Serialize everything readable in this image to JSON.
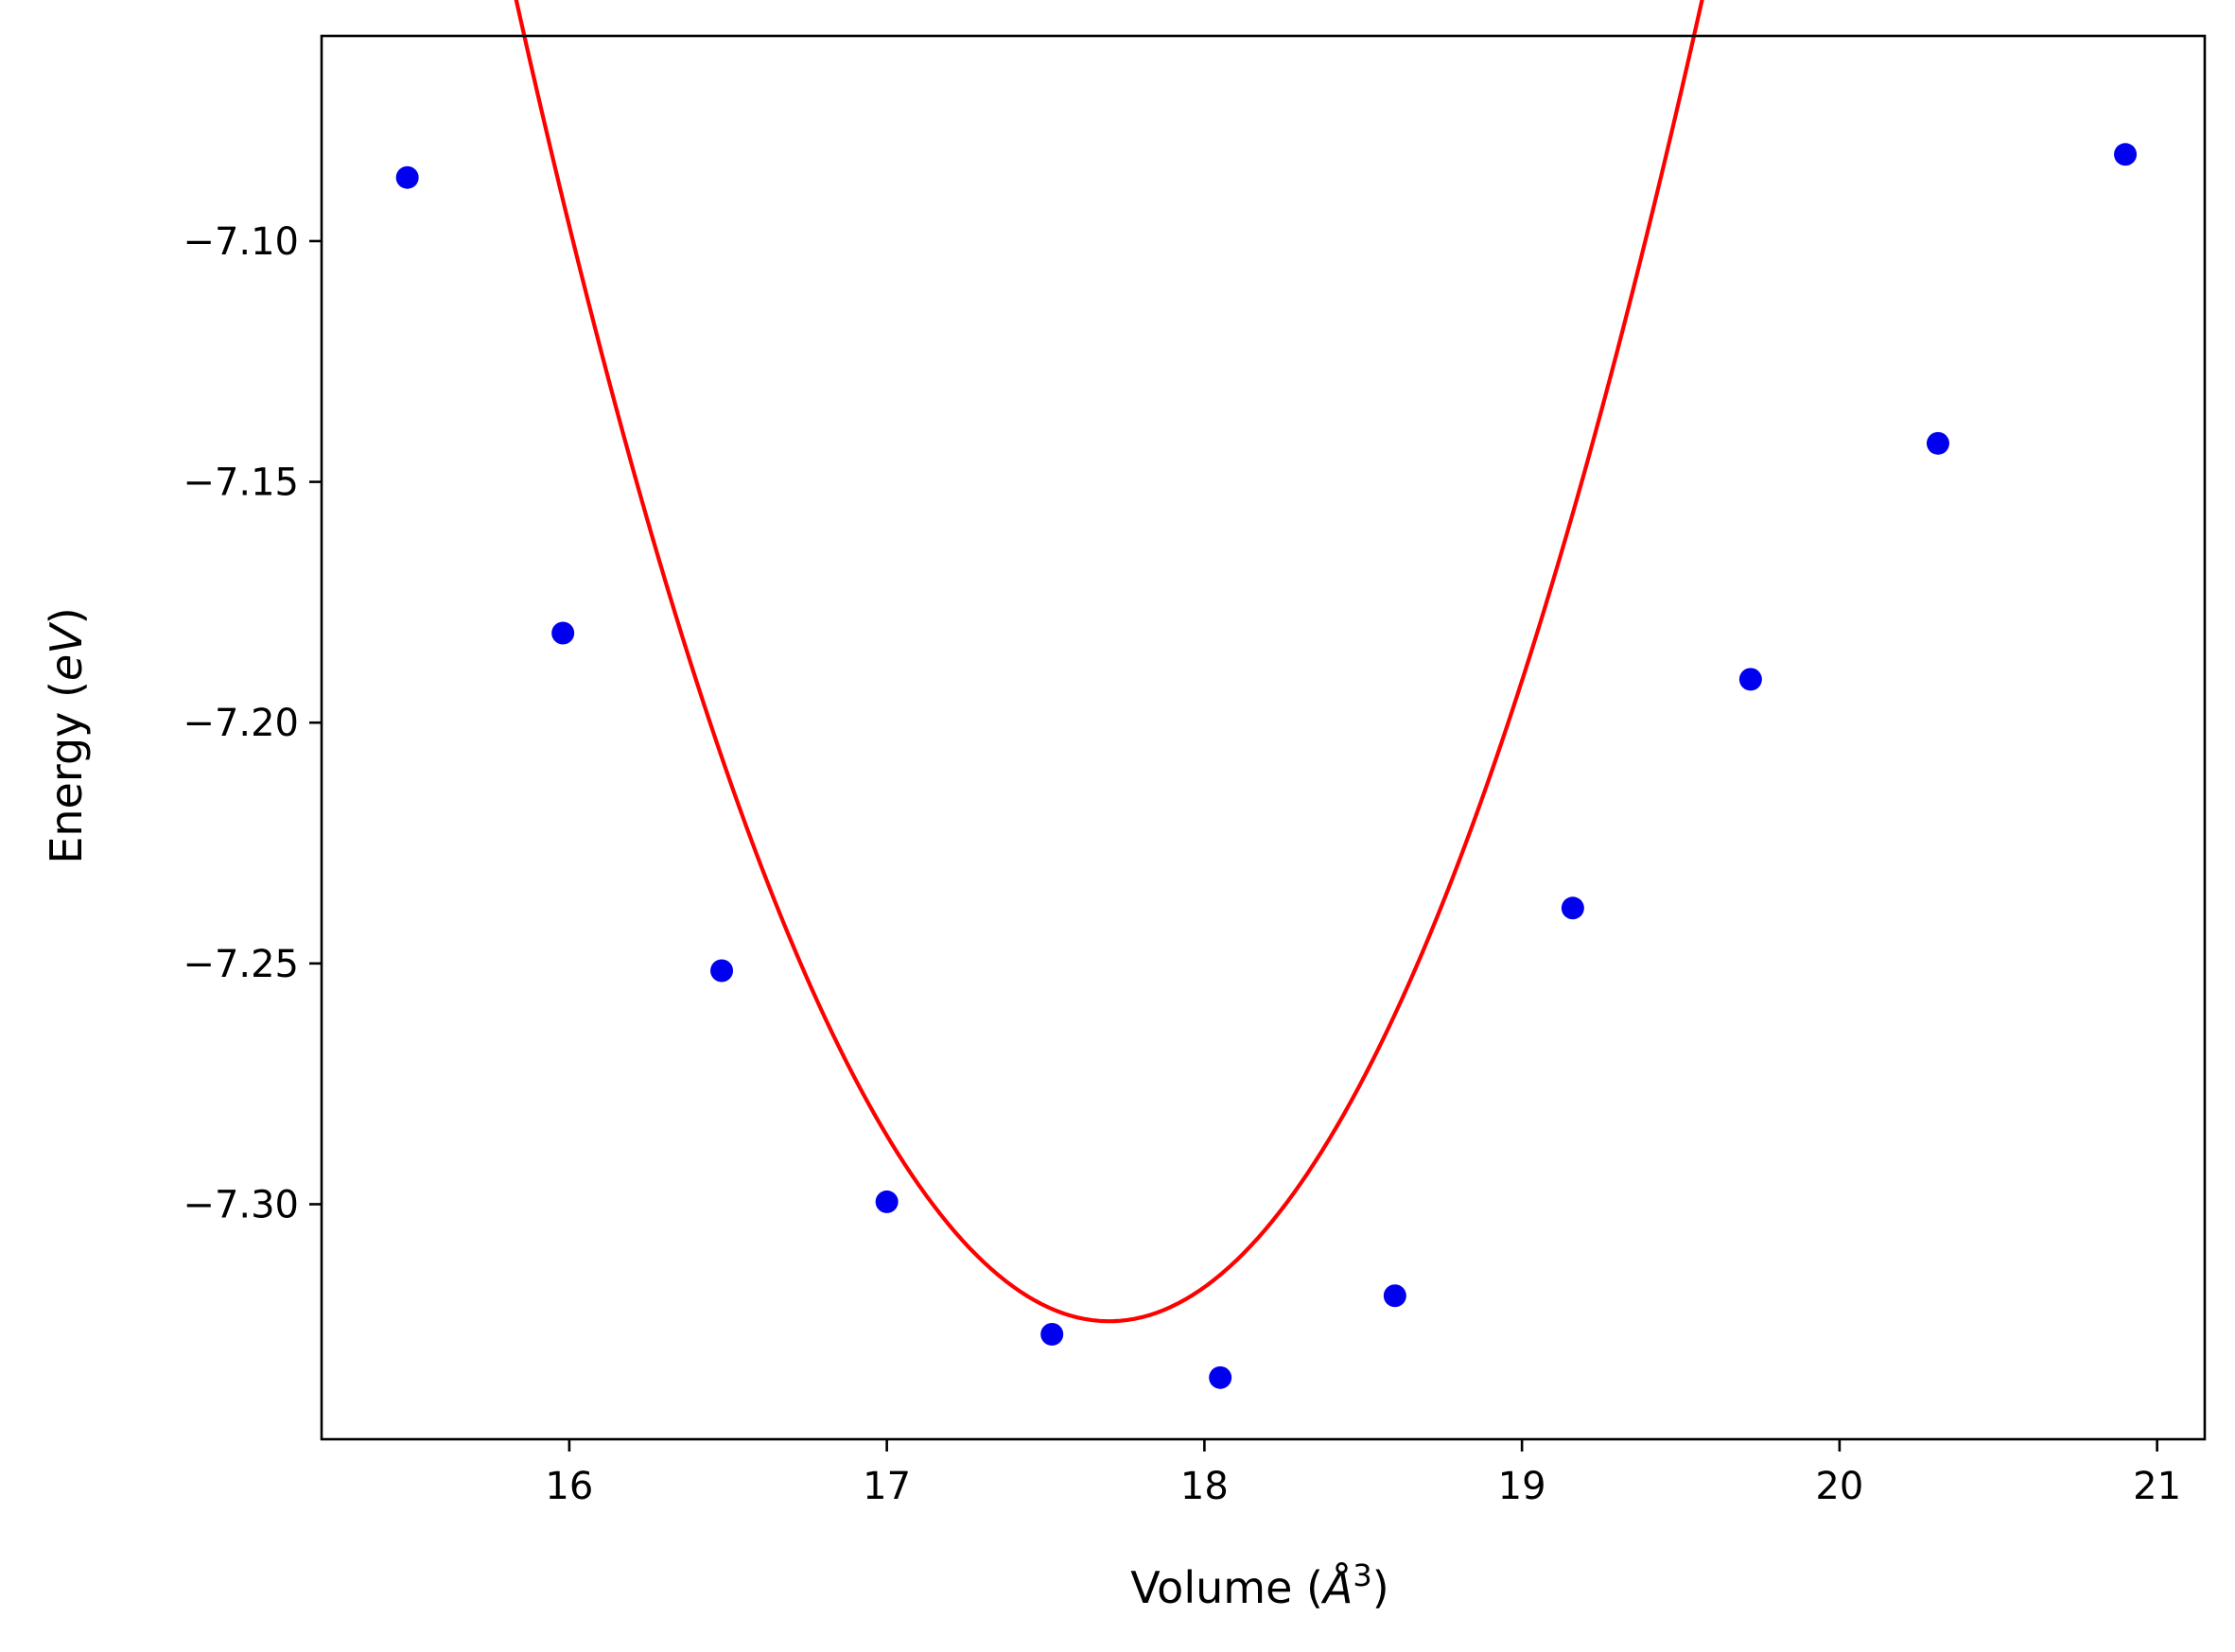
{
  "chart_data": {
    "type": "scatter",
    "title": "",
    "xlabel": {
      "prefix": "Volume (",
      "symbol": "Å",
      "sup": "3",
      "suffix": ")"
    },
    "ylabel": {
      "prefix": "Energy (",
      "symbol": "eV",
      "suffix": ")"
    },
    "xlim": [
      15.22,
      21.15
    ],
    "ylim": [
      -7.3488,
      -7.0574
    ],
    "x_ticks": [
      {
        "value": 16,
        "label": "16"
      },
      {
        "value": 17,
        "label": "17"
      },
      {
        "value": 18,
        "label": "18"
      },
      {
        "value": 19,
        "label": "19"
      },
      {
        "value": 20,
        "label": "20"
      },
      {
        "value": 21,
        "label": "21"
      }
    ],
    "y_ticks": [
      {
        "value": -7.1,
        "label": "−7.10"
      },
      {
        "value": -7.15,
        "label": "−7.15"
      },
      {
        "value": -7.2,
        "label": "−7.20"
      },
      {
        "value": -7.25,
        "label": "−7.25"
      },
      {
        "value": -7.3,
        "label": "−7.30"
      }
    ],
    "grid": false,
    "series": [
      {
        "kind": "scatter",
        "color": "#0000ee",
        "points": [
          {
            "x": 15.49,
            "y": -7.0868
          },
          {
            "x": 15.98,
            "y": -7.1814
          },
          {
            "x": 16.48,
            "y": -7.2515
          },
          {
            "x": 17.0,
            "y": -7.2995
          },
          {
            "x": 17.52,
            "y": -7.327
          },
          {
            "x": 18.05,
            "y": -7.336
          },
          {
            "x": 18.6,
            "y": -7.319
          },
          {
            "x": 19.16,
            "y": -7.2385
          },
          {
            "x": 19.72,
            "y": -7.191
          },
          {
            "x": 20.31,
            "y": -7.142
          },
          {
            "x": 20.9,
            "y": -7.082
          }
        ]
      },
      {
        "kind": "line",
        "color": "#ff0000",
        "fit": {
          "type": "quadratic",
          "vertex_x": 17.7,
          "vertex_y": -7.3243,
          "a": 0.0787
        },
        "x_range": [
          15.47,
          20.91
        ]
      }
    ]
  }
}
